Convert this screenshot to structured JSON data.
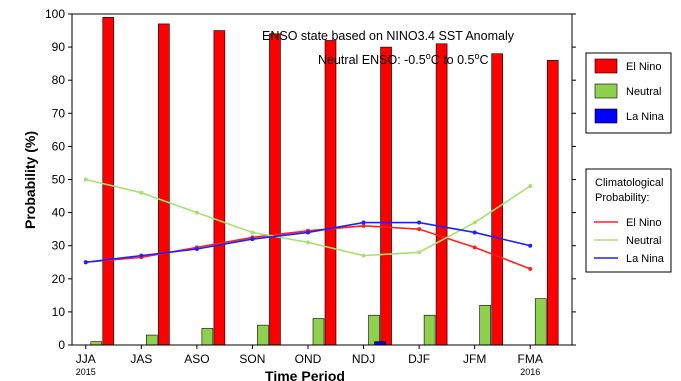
{
  "chart_data": {
    "type": "bar",
    "title_line1": "ENSO state based on NINO3.4 SST Anomaly",
    "title_line2_prefix": "Neutral ENSO: -0.5",
    "title_line2_mid": "C to 0.5",
    "title_line2_sup": "o",
    "title_line2_suffix": "C",
    "xlabel": "Time Period",
    "ylabel": "Probability (%)",
    "ylim": [
      0,
      100
    ],
    "yticks": [
      0,
      10,
      20,
      30,
      40,
      50,
      60,
      70,
      80,
      90,
      100
    ],
    "categories": [
      "JJA",
      "JAS",
      "ASO",
      "SON",
      "OND",
      "NDJ",
      "DJF",
      "JFM",
      "FMA"
    ],
    "category_sublabels": [
      {
        "index": 0,
        "text": "2015"
      },
      {
        "index": 8,
        "text": "2016"
      }
    ],
    "bar_series": [
      {
        "name": "El Nino",
        "color": "#ff0000",
        "values": [
          99,
          97,
          95,
          94,
          92,
          90,
          91,
          88,
          86
        ]
      },
      {
        "name": "Neutral",
        "color": "#8fd14f",
        "values": [
          1,
          3,
          5,
          6,
          8,
          9,
          9,
          12,
          14
        ]
      },
      {
        "name": "La Nina",
        "color": "#0000ff",
        "values": [
          0,
          0,
          0,
          0,
          0,
          1,
          0,
          0,
          0
        ]
      }
    ],
    "line_legend_title": [
      "Climatological",
      "Probability:"
    ],
    "line_series": [
      {
        "name": "El Nino",
        "color": "#ff2020",
        "values": [
          25,
          26.5,
          29.5,
          32.5,
          34.5,
          36,
          35,
          29.5,
          23
        ]
      },
      {
        "name": "Neutral",
        "color": "#a8e070",
        "values": [
          50,
          46,
          40,
          34,
          31,
          27,
          28,
          37,
          48
        ]
      },
      {
        "name": "La Nina",
        "color": "#2020ff",
        "values": [
          25,
          27,
          29,
          32,
          34,
          37,
          37,
          34,
          30
        ]
      }
    ],
    "grid": false,
    "legend_position": "right"
  }
}
